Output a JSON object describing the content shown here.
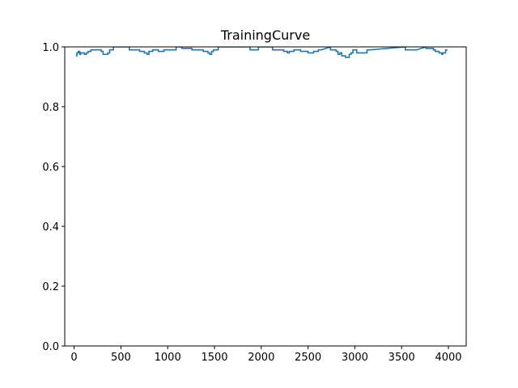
{
  "chart_data": {
    "type": "line",
    "title": "TrainingCurve",
    "xlabel": "",
    "ylabel": "",
    "xlim": [
      -100,
      4190
    ],
    "ylim": [
      0.0,
      1.0
    ],
    "xticks": [
      0,
      500,
      1000,
      1500,
      2000,
      2500,
      3000,
      3500,
      4000
    ],
    "xtick_labels": [
      "0",
      "500",
      "1000",
      "1500",
      "2000",
      "2500",
      "3000",
      "3500",
      "4000"
    ],
    "yticks": [
      0.0,
      0.2,
      0.4,
      0.6,
      0.8,
      1.0
    ],
    "ytick_labels": [
      "0.0",
      "0.2",
      "0.4",
      "0.6",
      "0.8",
      "1.0"
    ],
    "grid": false,
    "legend": "none",
    "colors": {
      "line": "#1f77b4"
    },
    "series": [
      {
        "x": [
          20,
          30,
          30,
          45,
          45,
          60,
          60,
          70,
          70,
          90,
          90,
          110,
          110,
          130,
          130,
          150,
          150,
          180,
          180,
          210,
          210,
          250,
          250,
          290,
          290,
          310,
          310,
          320,
          320,
          360,
          360,
          380,
          380,
          420,
          420,
          590,
          590,
          660,
          660,
          700,
          700,
          750,
          750,
          780,
          780,
          800,
          800,
          840,
          840,
          900,
          900,
          960,
          960,
          1000,
          1000,
          1040,
          1040,
          1090,
          1090,
          1150,
          1150,
          1200,
          1200,
          1260,
          1260,
          1330,
          1330,
          1380,
          1380,
          1430,
          1430,
          1450,
          1450,
          1470,
          1470,
          1490,
          1490,
          1540,
          1540,
          1550,
          1880,
          1880,
          1970,
          1970,
          2000,
          2120,
          2120,
          2240,
          2240,
          2280,
          2280,
          2300,
          2300,
          2350,
          2350,
          2420,
          2420,
          2500,
          2500,
          2560,
          2560,
          2610,
          2610,
          2640,
          2740,
          2740,
          2800,
          2800,
          2820,
          2820,
          2840,
          2840,
          2860,
          2860,
          2900,
          2900,
          2940,
          2940,
          2960,
          2960,
          2980,
          2980,
          3020,
          3020,
          3080,
          3080,
          3130,
          3130,
          3160,
          3540,
          3540,
          3640,
          3640,
          3660,
          3760,
          3760,
          3840,
          3840,
          3860,
          3860,
          3900,
          3900,
          3930,
          3930,
          3940,
          3940,
          3960,
          3960,
          3970,
          3970,
          3990
        ],
        "y": [
          0.97,
          0.97,
          0.98,
          0.98,
          0.985,
          0.985,
          0.975,
          0.975,
          0.98,
          0.98,
          0.98,
          0.98,
          0.975,
          0.975,
          0.98,
          0.98,
          0.985,
          0.985,
          0.99,
          0.99,
          0.99,
          0.99,
          0.99,
          0.99,
          0.985,
          0.985,
          0.975,
          0.975,
          0.975,
          0.975,
          0.98,
          0.98,
          0.99,
          0.99,
          1.0,
          1.0,
          0.99,
          0.99,
          0.99,
          0.99,
          0.985,
          0.985,
          0.98,
          0.98,
          0.975,
          0.975,
          0.985,
          0.985,
          0.99,
          0.99,
          0.985,
          0.985,
          0.99,
          0.99,
          0.99,
          0.99,
          0.99,
          0.99,
          1.0,
          1.0,
          0.995,
          0.995,
          0.995,
          0.995,
          0.99,
          0.99,
          0.99,
          0.99,
          0.985,
          0.985,
          0.98,
          0.98,
          0.975,
          0.975,
          0.985,
          0.985,
          0.99,
          0.99,
          1.0,
          1.0,
          1.0,
          0.99,
          0.99,
          1.0,
          1.0,
          1.0,
          0.99,
          0.99,
          0.985,
          0.985,
          0.98,
          0.98,
          0.985,
          0.985,
          0.99,
          0.99,
          0.985,
          0.985,
          0.98,
          0.98,
          0.985,
          0.985,
          0.99,
          0.99,
          1.0,
          0.99,
          0.99,
          0.985,
          0.985,
          0.975,
          0.975,
          0.98,
          0.98,
          0.97,
          0.97,
          0.965,
          0.965,
          0.975,
          0.975,
          0.98,
          0.98,
          0.99,
          0.99,
          0.98,
          0.98,
          0.98,
          0.98,
          0.99,
          0.99,
          1.0,
          0.99,
          0.99,
          0.99,
          0.99,
          1.0,
          0.995,
          0.995,
          0.99,
          0.99,
          0.985,
          0.985,
          0.98,
          0.98,
          0.975,
          0.975,
          0.98,
          0.98,
          0.98,
          0.98,
          0.99,
          0.99
        ]
      }
    ]
  }
}
